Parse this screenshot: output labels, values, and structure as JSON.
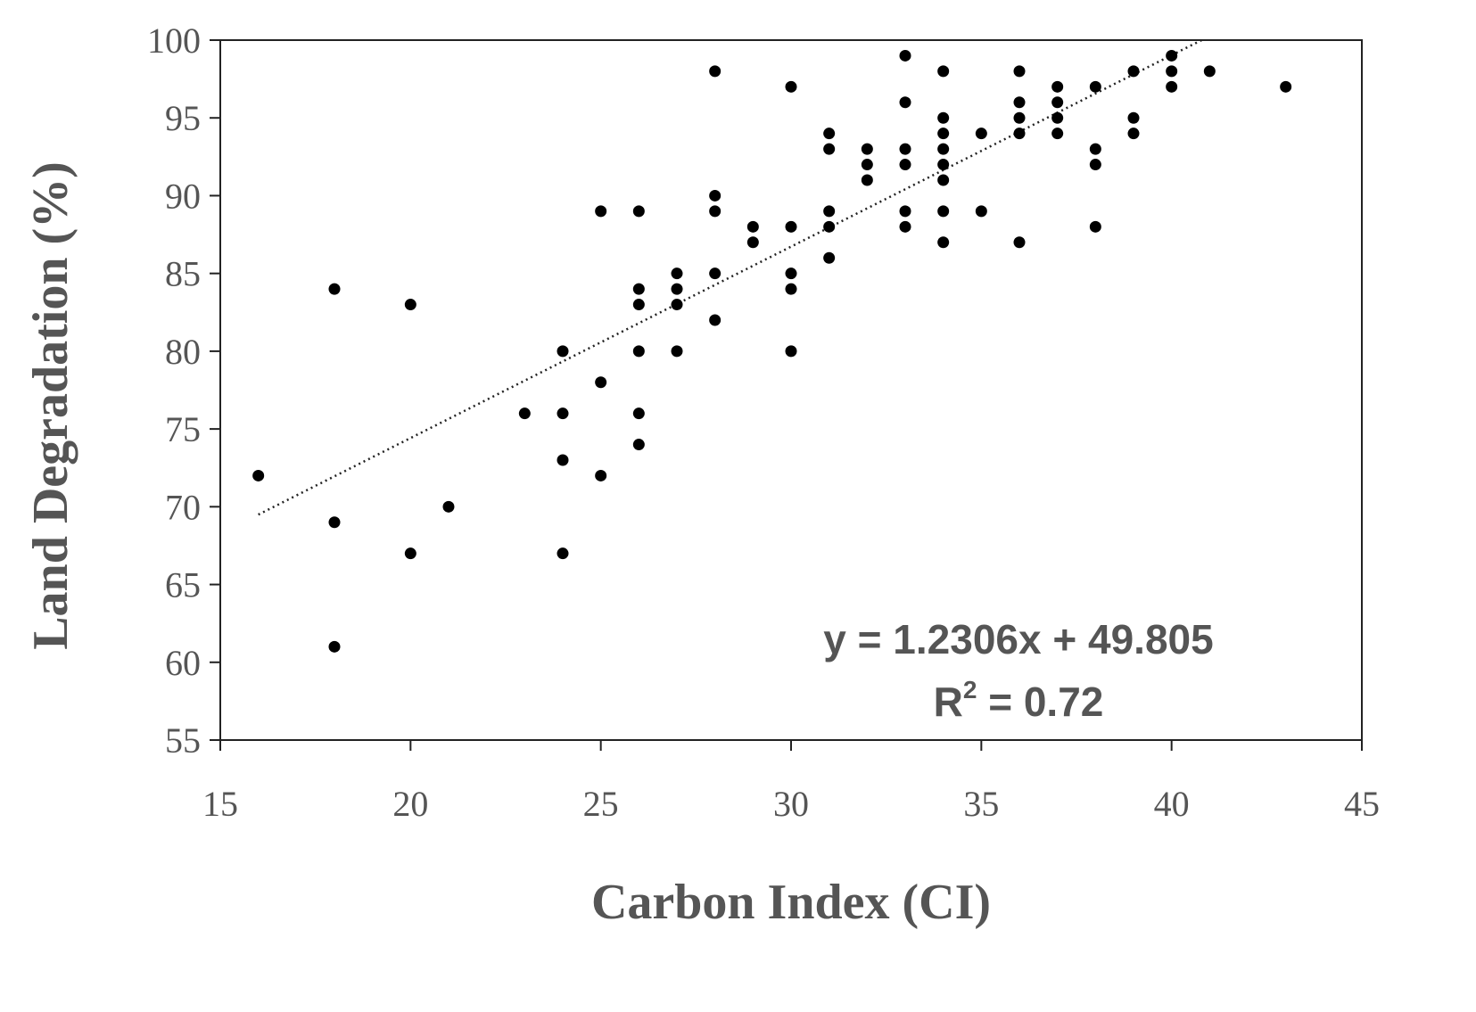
{
  "chart_data": {
    "type": "scatter",
    "xlabel": "Carbon Index (CI)",
    "ylabel": "Land Degradation (%)",
    "xlim": [
      15,
      45
    ],
    "ylim": [
      55,
      100
    ],
    "xticks": [
      "15",
      "20",
      "25",
      "30",
      "35",
      "40",
      "45"
    ],
    "yticks": [
      "55",
      "60",
      "65",
      "70",
      "75",
      "80",
      "85",
      "90",
      "95",
      "100"
    ],
    "grid": false,
    "point_color": "#000000",
    "trendline": {
      "type": "linear",
      "slope": 1.2306,
      "intercept": 49.805,
      "x_start": 16,
      "equation_label": "y = 1.2306x + 49.805",
      "r2_prefix": "R",
      "r2_sup": "2",
      "r2_suffix": " = 0.72"
    },
    "points": [
      [
        16,
        72
      ],
      [
        18,
        84
      ],
      [
        18,
        69
      ],
      [
        18,
        61
      ],
      [
        20,
        83
      ],
      [
        20,
        67
      ],
      [
        21,
        70
      ],
      [
        23,
        76
      ],
      [
        24,
        80
      ],
      [
        24,
        76
      ],
      [
        24,
        73
      ],
      [
        24,
        67
      ],
      [
        25,
        89
      ],
      [
        25,
        78
      ],
      [
        25,
        72
      ],
      [
        26,
        89
      ],
      [
        26,
        84
      ],
      [
        26,
        83
      ],
      [
        26,
        80
      ],
      [
        26,
        76
      ],
      [
        26,
        74
      ],
      [
        27,
        85
      ],
      [
        27,
        84
      ],
      [
        27,
        83
      ],
      [
        27,
        80
      ],
      [
        28,
        98
      ],
      [
        28,
        90
      ],
      [
        28,
        89
      ],
      [
        28,
        85
      ],
      [
        28,
        82
      ],
      [
        29,
        88
      ],
      [
        29,
        87
      ],
      [
        30,
        97
      ],
      [
        30,
        88
      ],
      [
        30,
        85
      ],
      [
        30,
        84
      ],
      [
        30,
        80
      ],
      [
        31,
        94
      ],
      [
        31,
        93
      ],
      [
        31,
        89
      ],
      [
        31,
        88
      ],
      [
        31,
        86
      ],
      [
        32,
        93
      ],
      [
        32,
        92
      ],
      [
        32,
        91
      ],
      [
        33,
        99
      ],
      [
        33,
        96
      ],
      [
        33,
        93
      ],
      [
        33,
        92
      ],
      [
        33,
        89
      ],
      [
        33,
        88
      ],
      [
        34,
        98
      ],
      [
        34,
        95
      ],
      [
        34,
        94
      ],
      [
        34,
        93
      ],
      [
        34,
        92
      ],
      [
        34,
        91
      ],
      [
        34,
        89
      ],
      [
        34,
        87
      ],
      [
        35,
        94
      ],
      [
        35,
        89
      ],
      [
        36,
        98
      ],
      [
        36,
        96
      ],
      [
        36,
        95
      ],
      [
        36,
        94
      ],
      [
        36,
        87
      ],
      [
        37,
        97
      ],
      [
        37,
        96
      ],
      [
        37,
        95
      ],
      [
        37,
        94
      ],
      [
        38,
        97
      ],
      [
        38,
        93
      ],
      [
        38,
        92
      ],
      [
        38,
        88
      ],
      [
        39,
        98
      ],
      [
        39,
        95
      ],
      [
        39,
        94
      ],
      [
        40,
        99
      ],
      [
        40,
        98
      ],
      [
        40,
        97
      ],
      [
        41,
        98
      ],
      [
        43,
        97
      ]
    ]
  }
}
